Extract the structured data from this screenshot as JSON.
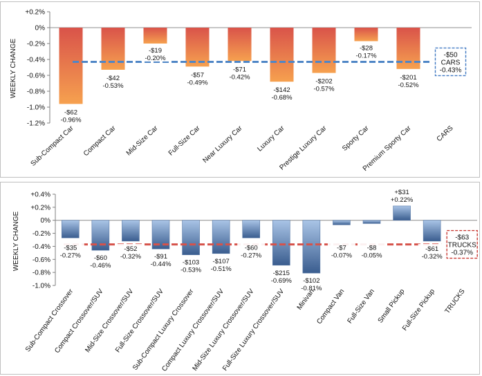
{
  "chart_data": [
    {
      "type": "bar",
      "ylabel": "WEEKLY CHANGE",
      "ylim": [
        -1.2,
        0.2
      ],
      "yticks": [
        "+0.2%",
        "0%",
        "-0.2%",
        "-0.4%",
        "-0.6%",
        "-0.8%",
        "-1.0%",
        "-1.2%"
      ],
      "categories": [
        "Sub-Compact Car",
        "Compact Car",
        "Mid-Size Car",
        "Full-Size Car",
        "Near Luxury Car",
        "Luxury Car",
        "Prestige Luxury Car",
        "Sporty Car",
        "Premium Sporty Car"
      ],
      "values": [
        -0.96,
        -0.53,
        -0.2,
        -0.49,
        -0.42,
        -0.68,
        -0.57,
        -0.17,
        -0.52
      ],
      "dollar_labels": [
        "-$62",
        "-$42",
        "-$19",
        "-$57",
        "-$71",
        "-$142",
        "-$202",
        "-$28",
        "-$201"
      ],
      "pct_labels": [
        "-0.96%",
        "-0.53%",
        "-0.20%",
        "-0.49%",
        "-0.42%",
        "-0.68%",
        "-0.57%",
        "-0.17%",
        "-0.52%"
      ],
      "average": {
        "category": "CARS",
        "value": -0.43,
        "dollar_label": "-$50",
        "name_label": "CARS",
        "pct_label": "-0.43%"
      },
      "colors": {
        "bar_top": "#d9534a",
        "bar_bottom": "#f6a14f",
        "avg_line": "#4f86c6",
        "avg_box": "#3f78c2"
      }
    },
    {
      "type": "bar",
      "ylabel": "WEEKLY CHANGE",
      "ylim": [
        -1.0,
        0.4
      ],
      "yticks": [
        "+0.4%",
        "+0.2%",
        "0%",
        "-0.2%",
        "-0.4%",
        "-0.6%",
        "-0.8%",
        "-1.0%"
      ],
      "categories": [
        "Sub-Compact Crossover",
        "Compact Crossover/SUV",
        "Mid-Size Crossover/SUV",
        "Full-Size Crossover/SUV",
        "Sub-Compact Luxury Crossover",
        "Compact Luxury Crossover/SUV",
        "Mid-Size Luxury Crossover/SUV",
        "Full-Size Luxury Crossover/SUV",
        "Minivan",
        "Compact Van",
        "Full-Size Van",
        "Small Pickup",
        "Full-Size Pickup"
      ],
      "values": [
        -0.27,
        -0.46,
        -0.32,
        -0.44,
        -0.53,
        -0.51,
        -0.27,
        -0.69,
        -0.81,
        -0.07,
        -0.05,
        0.22,
        -0.32
      ],
      "dollar_labels": [
        "-$35",
        "-$60",
        "-$52",
        "-$91",
        "-$103",
        "-$107",
        "-$60",
        "-$215",
        "-$102",
        "-$7",
        "-$8",
        "+$31",
        "-$61"
      ],
      "pct_labels": [
        "-0.27%",
        "-0.46%",
        "-0.32%",
        "-0.44%",
        "-0.53%",
        "-0.51%",
        "-0.27%",
        "-0.69%",
        "-0.81%",
        "-0.07%",
        "-0.05%",
        "+0.22%",
        "-0.32%"
      ],
      "average": {
        "category": "TRUCKS",
        "value": -0.37,
        "dollar_label": "-$63",
        "name_label": "TRUCKS",
        "pct_label": "-0.37%"
      },
      "colors": {
        "bar_top": "#a9c4e6",
        "bar_bottom": "#3a5d8f",
        "avg_line": "#d6524a",
        "avg_box": "#c93a33"
      }
    }
  ]
}
